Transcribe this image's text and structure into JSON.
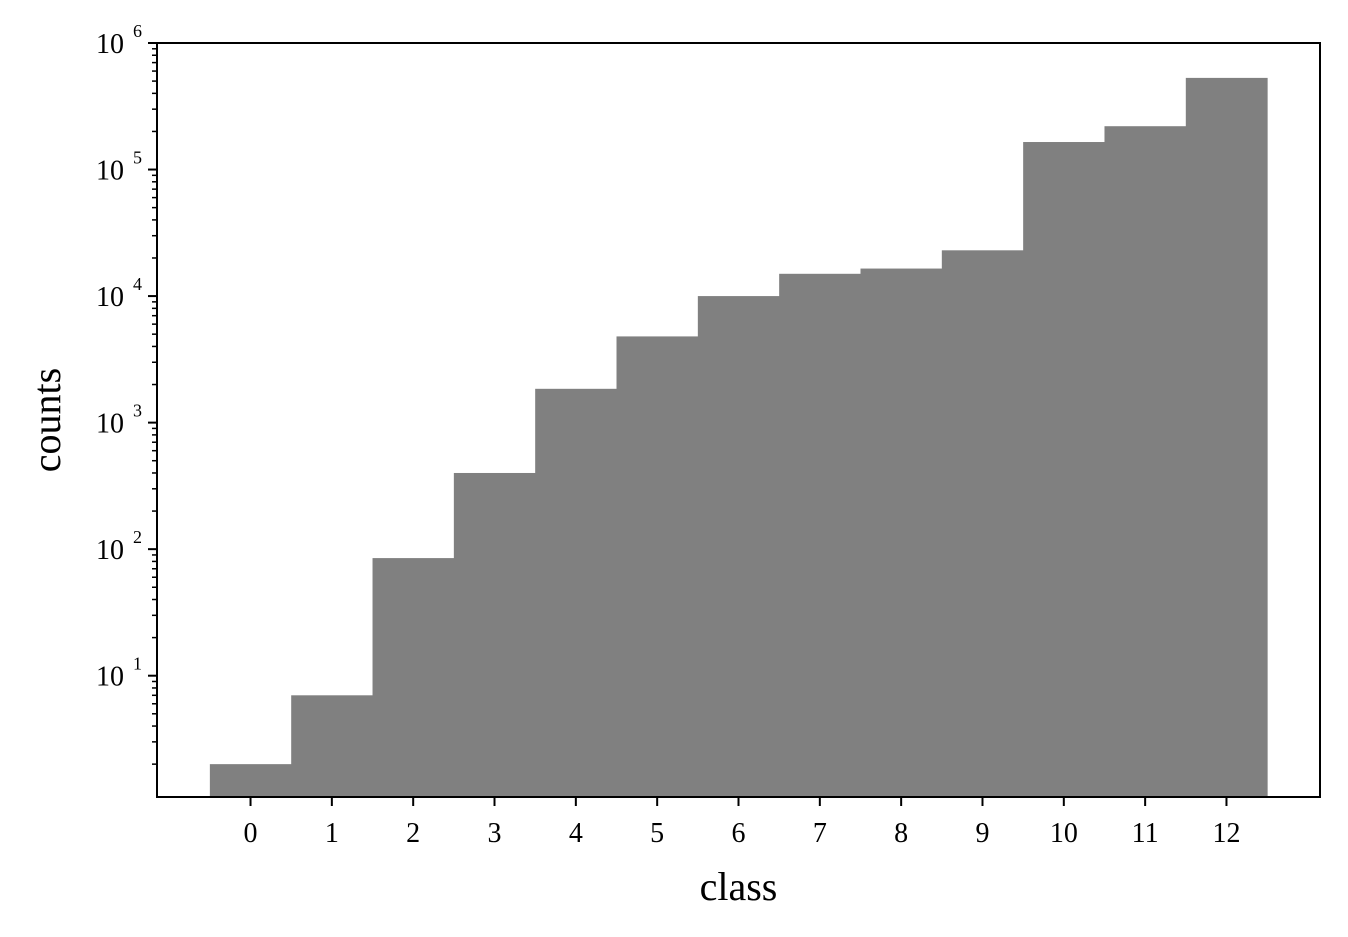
{
  "chart_data": {
    "type": "bar",
    "xlabel": "class",
    "ylabel": "counts",
    "yscale": "log",
    "ylim": [
      1.1,
      1000000
    ],
    "xlim": [
      -1.15,
      13.15
    ],
    "grid": false,
    "bar_color": "#808080",
    "categories": [
      "0",
      "1",
      "2",
      "3",
      "4",
      "5",
      "6",
      "7",
      "8",
      "9",
      "10",
      "11",
      "12"
    ],
    "values": [
      2,
      7,
      85,
      400,
      1850,
      4800,
      10000,
      15000,
      16500,
      23000,
      165000,
      220000,
      530000
    ],
    "ytick_bases": [
      "10",
      "10",
      "10",
      "10",
      "10",
      "10"
    ],
    "ytick_exponents": [
      "1",
      "2",
      "3",
      "4",
      "5",
      "6"
    ],
    "ytick_values": [
      10,
      100,
      1000,
      10000,
      100000,
      1000000
    ]
  }
}
